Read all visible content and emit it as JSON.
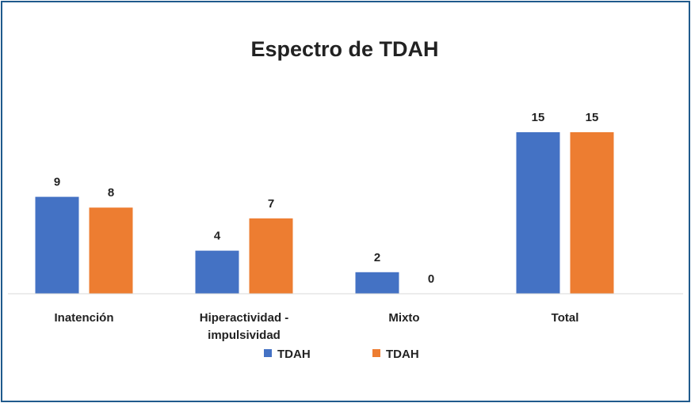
{
  "chart_data": {
    "type": "bar",
    "title": "Espectro de TDAH",
    "xlabel": "",
    "ylabel": "",
    "categories": [
      [
        "Inatención"
      ],
      [
        "Hiperactividad -",
        "impulsividad"
      ],
      [
        "Mixto"
      ],
      [
        "Total"
      ]
    ],
    "series": [
      {
        "name": "TDAH",
        "color": "#4472c4",
        "values": [
          9,
          4,
          2,
          15
        ]
      },
      {
        "name": "TDAH",
        "color": "#ed7d31",
        "values": [
          8,
          7,
          0,
          15
        ]
      }
    ],
    "ylim": [
      0,
      15
    ],
    "grid": false,
    "legend": "bottom"
  }
}
